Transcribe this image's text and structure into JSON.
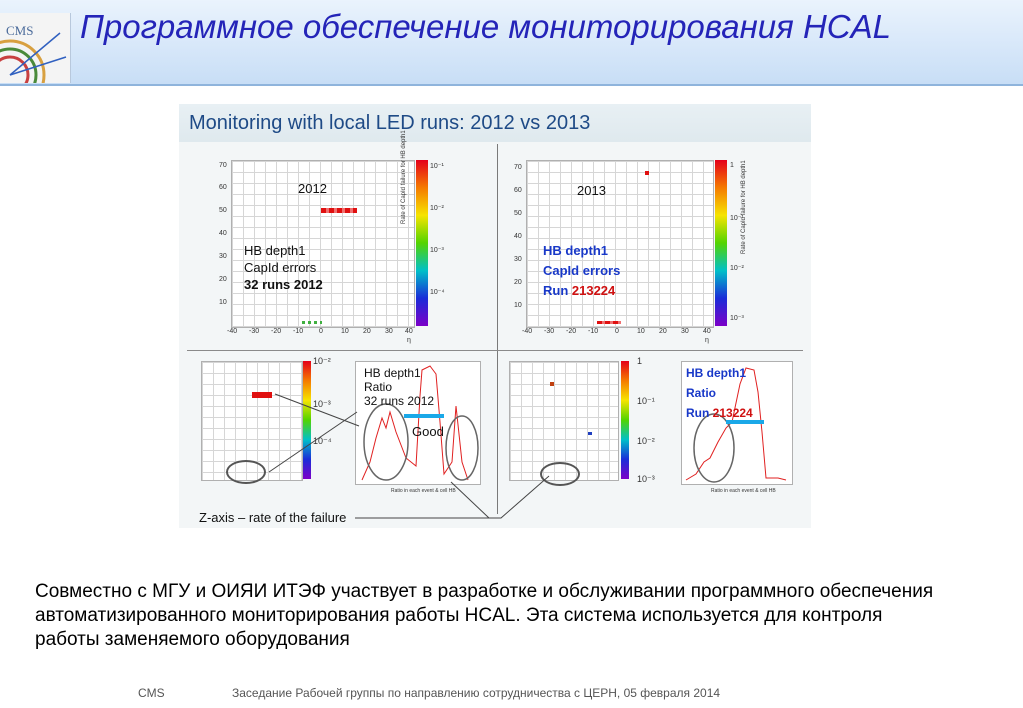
{
  "header": {
    "logo_text": "CMS",
    "title": "Программное обеспечение мониторирования HCAL"
  },
  "figure": {
    "title": "Monitoring with local LED runs: 2012 vs 2013",
    "zaxis_label": "Z-axis – rate of the failure",
    "left_top": {
      "year": "2012",
      "line1": "HB depth1",
      "line2": "CapId errors",
      "line3": "32 runs 2012",
      "z_title": "Rate of CapId failure for HB depth1",
      "x_title": "η",
      "x_ticks": [
        "-40",
        "-30",
        "-20",
        "-10",
        "0",
        "10",
        "20",
        "30",
        "40"
      ],
      "y_ticks": [
        "70",
        "60",
        "50",
        "40",
        "30",
        "20",
        "10"
      ],
      "z_ticks": [
        "10⁻¹",
        "10⁻²",
        "10⁻³",
        "10⁻⁴"
      ]
    },
    "right_top": {
      "year": "2013",
      "line1": "HB depth1",
      "line2": "CapId errors",
      "line3_prefix": "Run ",
      "line3_run": "213224",
      "z_title": "Rate of CapId failure for HB depth1",
      "x_title": "η",
      "x_ticks": [
        "-40",
        "-30",
        "-20",
        "-10",
        "0",
        "10",
        "20",
        "30",
        "40"
      ],
      "y_ticks": [
        "70",
        "60",
        "50",
        "40",
        "30",
        "20",
        "10"
      ],
      "z_ticks": [
        "1",
        "10⁻¹",
        "10⁻²",
        "10⁻³"
      ]
    },
    "left_bottom": {
      "z_ticks": [
        "10⁻²",
        "10⁻³",
        "10⁻⁴"
      ],
      "hist_line1": "HB depth1",
      "hist_line2": "Ratio",
      "hist_line3": "32 runs 2012",
      "hist_good": "Good",
      "hist_x_title": "Ratio in each event & cell HB"
    },
    "right_bottom": {
      "z_ticks": [
        "1",
        "10⁻¹",
        "10⁻²",
        "10⁻³"
      ],
      "hist_line1": "HB depth1",
      "hist_line2": "Ratio",
      "hist_line3_prefix": "Run ",
      "hist_line3_run": "213224",
      "hist_x_title": "Ratio in each event & cell HB"
    }
  },
  "body_text": "Совместно с МГУ и ОИЯИ ИТЭФ участвует в разработке и обслуживании программного обеспечения автоматизированного мониторирования работы HCAL. Эта система используется для контроля работы заменяемого оборудования",
  "footer": {
    "left": "CMS",
    "center": "Заседание Рабочей группы по направлению сотрудничества с ЦЕРН, 05 февраля 2014"
  },
  "colors": {
    "title": "#2424b8",
    "header_bg": "#c8def6",
    "accent_blue": "#1838c8",
    "run_red": "#d01010",
    "marker_cyan": "#1aa8e8"
  }
}
